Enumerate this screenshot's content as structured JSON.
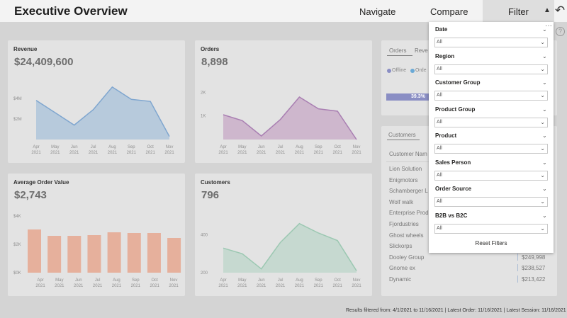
{
  "header": {
    "title": "Executive Overview",
    "nav_navigate": "Navigate",
    "nav_compare": "Compare",
    "nav_filter": "Filter",
    "filter_caret": "▲",
    "back_icon": "back-arrow-icon",
    "back_glyph": "↶"
  },
  "revenue": {
    "title": "Revenue",
    "value": "$24,409,600",
    "yticks": [
      "$4M",
      "$2M"
    ],
    "color": "#a8c2da"
  },
  "orders": {
    "title": "Orders",
    "value": "8,898",
    "yticks": [
      "2K",
      "1K"
    ],
    "color": "#c7a8c6"
  },
  "aov": {
    "title": "Average Order Value",
    "value": "$2,743",
    "yticks": [
      "$4K",
      "$2K",
      "$0K"
    ],
    "color": "#e6b09c"
  },
  "customers": {
    "title": "Customers",
    "value": "796",
    "yticks": [
      "400",
      "200"
    ],
    "color": "#bcd6ca"
  },
  "months": [
    "Apr",
    "May",
    "Jun",
    "Jul",
    "Aug",
    "Sep",
    "Oct",
    "Nov"
  ],
  "year": "2021",
  "chart_data": [
    {
      "type": "area",
      "title": "Revenue",
      "categories": [
        "Apr 2021",
        "May 2021",
        "Jun 2021",
        "Jul 2021",
        "Aug 2021",
        "Sep 2021",
        "Oct 2021",
        "Nov 2021"
      ],
      "values": [
        3800000,
        2600000,
        1400000,
        2900000,
        5100000,
        3900000,
        3700000,
        300000
      ],
      "ylim": [
        0,
        5500000
      ]
    },
    {
      "type": "area",
      "title": "Orders",
      "categories": [
        "Apr 2021",
        "May 2021",
        "Jun 2021",
        "Jul 2021",
        "Aug 2021",
        "Sep 2021",
        "Oct 2021",
        "Nov 2021"
      ],
      "values": [
        1050,
        800,
        150,
        850,
        1800,
        1300,
        1200,
        0
      ],
      "ylim": [
        0,
        2400
      ]
    },
    {
      "type": "bar",
      "title": "Average Order Value",
      "categories": [
        "Apr 2021",
        "May 2021",
        "Jun 2021",
        "Jul 2021",
        "Aug 2021",
        "Sep 2021",
        "Oct 2021",
        "Nov 2021"
      ],
      "values": [
        3050,
        2600,
        2600,
        2650,
        2850,
        2800,
        2800,
        2450
      ],
      "ylim": [
        0,
        4000
      ]
    },
    {
      "type": "area",
      "title": "Customers",
      "categories": [
        "Apr 2021",
        "May 2021",
        "Jun 2021",
        "Jul 2021",
        "Aug 2021",
        "Sep 2021",
        "Oct 2021",
        "Nov 2021"
      ],
      "values": [
        330,
        300,
        220,
        360,
        460,
        410,
        370,
        210
      ],
      "ylim": [
        200,
        500
      ]
    }
  ],
  "right_top": {
    "tab1": "Orders",
    "tab2": "Reve",
    "legend1": "Offline",
    "legend2": "Orde",
    "bar_pct": "39.3%",
    "dot1": "#8a8ec4",
    "dot2": "#6aa9d6"
  },
  "right_bottom": {
    "tab1": "Customers",
    "header": "Customer Nam",
    "rows": [
      {
        "name": "Lion Solution",
        "value": ""
      },
      {
        "name": "Enigmotors",
        "value": ""
      },
      {
        "name": "Schamberger L",
        "value": ""
      },
      {
        "name": "Wolf walk",
        "value": ""
      },
      {
        "name": "Enterprise Prod",
        "value": ""
      },
      {
        "name": "Fjordustries",
        "value": ""
      },
      {
        "name": "Ghost wheels",
        "value": ""
      },
      {
        "name": "Slickorps",
        "value": ""
      },
      {
        "name": "Dooley Group",
        "value": "$249,998"
      },
      {
        "name": "Gnome ex",
        "value": "$238,527"
      },
      {
        "name": "Dynamic",
        "value": "$213,422"
      }
    ]
  },
  "help_glyph": "?",
  "filters": {
    "more": "···",
    "groups": [
      {
        "label": "Date",
        "value": "All"
      },
      {
        "label": "Region",
        "value": "All"
      },
      {
        "label": "Customer Group",
        "value": "All"
      },
      {
        "label": "Product Group",
        "value": "All"
      },
      {
        "label": "Product",
        "value": "All"
      },
      {
        "label": "Sales Person",
        "value": "All"
      },
      {
        "label": "Order Source",
        "value": "All"
      },
      {
        "label": "B2B vs B2C",
        "value": "All"
      }
    ],
    "chevron": "⌄",
    "reset": "Reset Filters"
  },
  "footer": "Results filtered from: 4/1/2021 to 11/16/2021  |  Latest Order: 11/16/2021  |  Latest Session: 11/16/2021"
}
